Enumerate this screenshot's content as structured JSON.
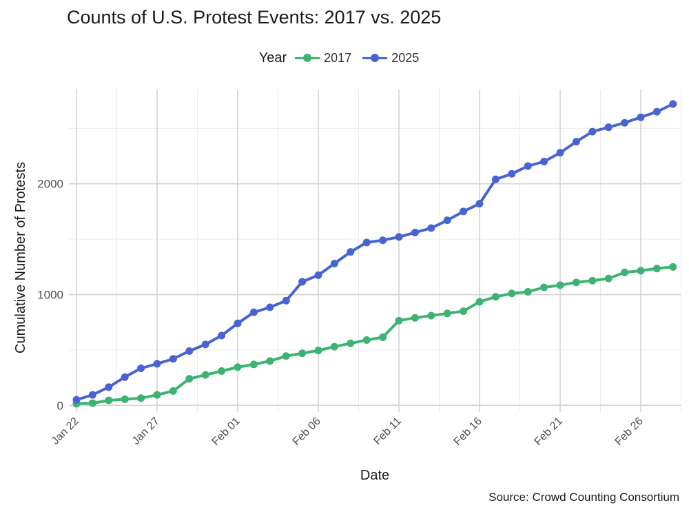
{
  "chart_data": {
    "type": "line",
    "title": "Counts of U.S. Protest Events: 2017 vs. 2025",
    "xlabel": "Date",
    "ylabel": "Cumulative Number of Protests",
    "legend": {
      "title": "Year",
      "placement": "top"
    },
    "source": "Source: Crowd Counting Consortium",
    "x": [
      "Jan 22",
      "Jan 23",
      "Jan 24",
      "Jan 25",
      "Jan 26",
      "Jan 27",
      "Jan 28",
      "Jan 29",
      "Jan 30",
      "Jan 31",
      "Feb 01",
      "Feb 02",
      "Feb 03",
      "Feb 04",
      "Feb 05",
      "Feb 06",
      "Feb 07",
      "Feb 08",
      "Feb 09",
      "Feb 10",
      "Feb 11",
      "Feb 12",
      "Feb 13",
      "Feb 14",
      "Feb 15",
      "Feb 16",
      "Feb 17",
      "Feb 18",
      "Feb 19",
      "Feb 20",
      "Feb 21",
      "Feb 22",
      "Feb 23",
      "Feb 24",
      "Feb 25",
      "Feb 26",
      "Feb 27",
      "Feb 28"
    ],
    "x_ticks": [
      "Jan 22",
      "Jan 27",
      "Feb 01",
      "Feb 06",
      "Feb 11",
      "Feb 16",
      "Feb 21",
      "Feb 26"
    ],
    "y_ticks": [
      0,
      1000,
      2000
    ],
    "ylim": [
      -60,
      2850
    ],
    "grid": true,
    "series": [
      {
        "name": "2017",
        "color": "#3cb371",
        "values": [
          15,
          20,
          45,
          55,
          65,
          95,
          130,
          240,
          275,
          310,
          345,
          370,
          400,
          445,
          470,
          495,
          530,
          560,
          590,
          615,
          765,
          790,
          810,
          830,
          850,
          935,
          980,
          1010,
          1025,
          1065,
          1085,
          1110,
          1125,
          1145,
          1200,
          1215,
          1235,
          1250
        ]
      },
      {
        "name": "2025",
        "color": "#4863d2",
        "values": [
          50,
          95,
          165,
          255,
          335,
          375,
          420,
          490,
          550,
          630,
          740,
          840,
          885,
          945,
          1115,
          1175,
          1280,
          1385,
          1470,
          1490,
          1520,
          1560,
          1600,
          1670,
          1750,
          1820,
          2040,
          2090,
          2160,
          2200,
          2280,
          2380,
          2470,
          2510,
          2550,
          2600,
          2650,
          2720
        ]
      }
    ]
  }
}
